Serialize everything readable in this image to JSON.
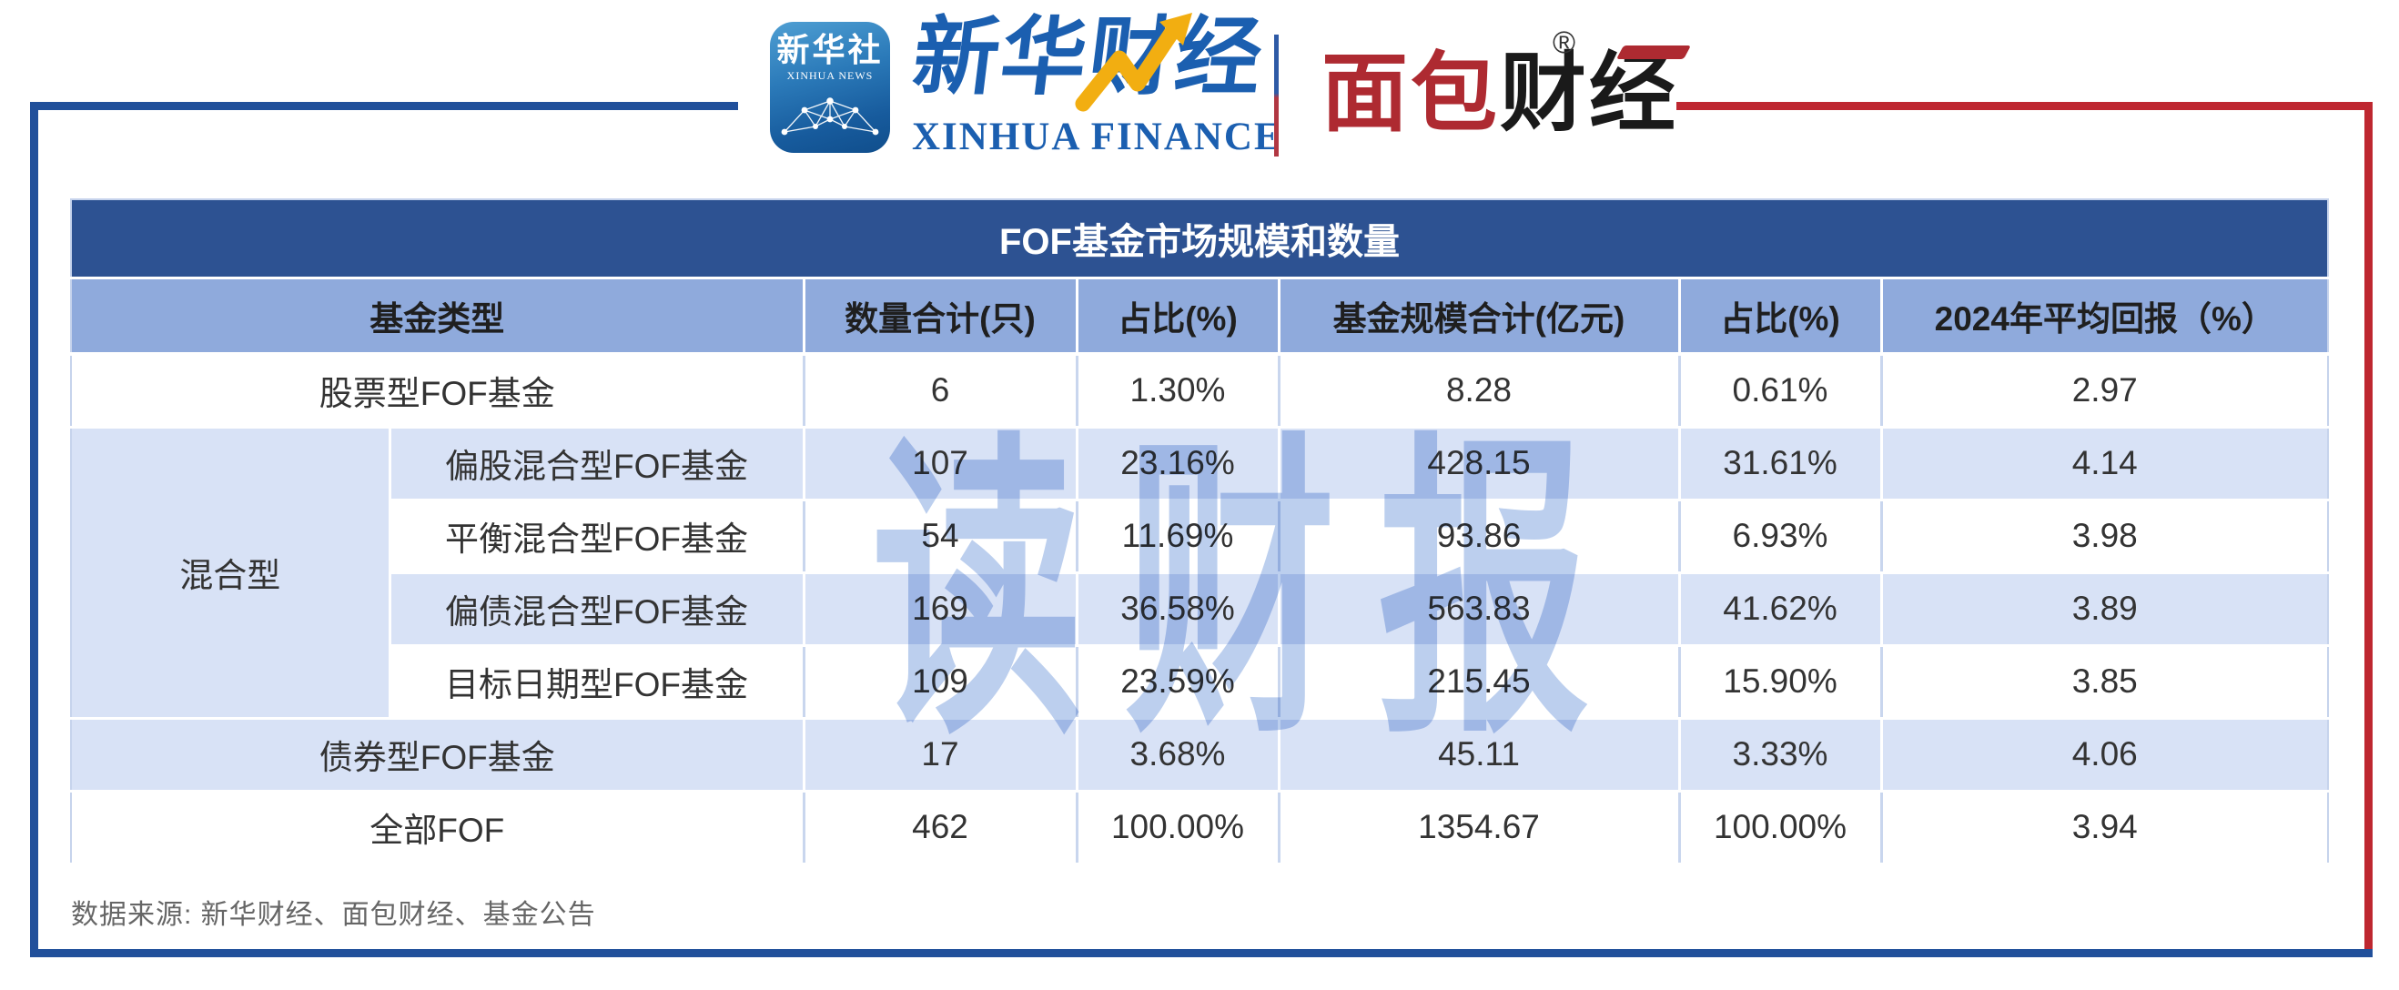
{
  "brand": {
    "icon": {
      "cn": "新华社",
      "en": "XINHUA NEWS"
    },
    "finance": {
      "cn": "新华财经",
      "en": "XINHUA FINANCE"
    },
    "bread": {
      "red": "面包",
      "black": "财经",
      "reg": "®"
    }
  },
  "table": {
    "title": "FOF基金市场规模和数量",
    "headers": [
      "基金类型",
      "数量合计(只)",
      "占比(%)",
      "基金规模合计(亿元)",
      "占比(%)",
      "2024年平均回报（%）"
    ],
    "rows": [
      {
        "category": "股票型FOF基金",
        "catSpan": 2,
        "values": [
          "6",
          "1.30%",
          "8.28",
          "0.61%",
          "2.97"
        ],
        "shade": false
      },
      {
        "group": "混合型",
        "groupSpan": 4,
        "sub": "偏股混合型FOF基金",
        "values": [
          "107",
          "23.16%",
          "428.15",
          "31.61%",
          "4.14"
        ],
        "shade": true
      },
      {
        "sub": "平衡混合型FOF基金",
        "values": [
          "54",
          "11.69%",
          "93.86",
          "6.93%",
          "3.98"
        ],
        "shade": false
      },
      {
        "sub": "偏债混合型FOF基金",
        "values": [
          "169",
          "36.58%",
          "563.83",
          "41.62%",
          "3.89"
        ],
        "shade": true
      },
      {
        "sub": "目标日期型FOF基金",
        "values": [
          "109",
          "23.59%",
          "215.45",
          "15.90%",
          "3.85"
        ],
        "shade": false
      },
      {
        "category": "债券型FOF基金",
        "catSpan": 2,
        "values": [
          "17",
          "3.68%",
          "45.11",
          "3.33%",
          "4.06"
        ],
        "shade": true
      },
      {
        "category": "全部FOF",
        "catSpan": 2,
        "values": [
          "462",
          "100.00%",
          "1354.67",
          "100.00%",
          "3.94"
        ],
        "shade": false
      }
    ]
  },
  "chart_data": {
    "type": "table",
    "title": "FOF基金市场规模和数量",
    "columns": [
      "基金类型",
      "数量合计(只)",
      "占比(%)",
      "基金规模合计(亿元)",
      "占比(%)",
      "2024年平均回报（%）"
    ],
    "rows": [
      [
        "股票型FOF基金",
        6,
        "1.30%",
        8.28,
        "0.61%",
        2.97
      ],
      [
        "混合型 / 偏股混合型FOF基金",
        107,
        "23.16%",
        428.15,
        "31.61%",
        4.14
      ],
      [
        "混合型 / 平衡混合型FOF基金",
        54,
        "11.69%",
        93.86,
        "6.93%",
        3.98
      ],
      [
        "混合型 / 偏债混合型FOF基金",
        169,
        "36.58%",
        563.83,
        "41.62%",
        3.89
      ],
      [
        "混合型 / 目标日期型FOF基金",
        109,
        "23.59%",
        215.45,
        "15.90%",
        3.85
      ],
      [
        "债券型FOF基金",
        17,
        "3.68%",
        45.11,
        "3.33%",
        4.06
      ],
      [
        "全部FOF",
        462,
        "100.00%",
        1354.67,
        "100.00%",
        3.94
      ]
    ]
  },
  "watermark": "读财报",
  "footer": "数据来源: 新华财经、面包财经、基金公告",
  "colors": {
    "title_bar": "#2d5292",
    "header_row": "#8faadc",
    "shaded_row": "#d8e2f6",
    "frame_blue": "#21509b",
    "frame_red": "#be2730",
    "brand_blue": "#1b5fb0",
    "bread_red": "#ae2a31",
    "bolt_gold": "#f2ae11",
    "watermark_blue": "#bccfee",
    "footer_gray": "#666666"
  }
}
